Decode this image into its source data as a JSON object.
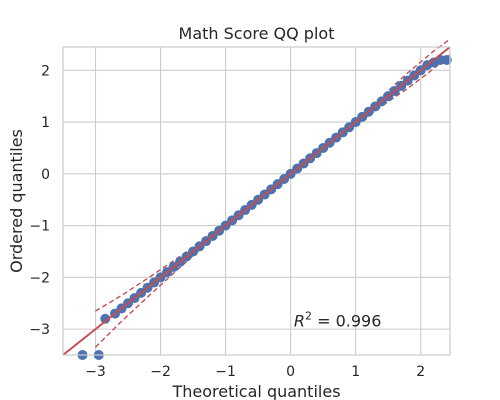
{
  "chart_data": {
    "type": "scatter",
    "title": "Math Score QQ plot",
    "xlabel": "Theoretical quantiles",
    "ylabel": "Ordered quantiles",
    "xlim": [
      -3.5,
      2.45
    ],
    "ylim": [
      -3.5,
      2.45
    ],
    "xticks": [
      -3,
      -2,
      -1,
      0,
      1,
      2
    ],
    "yticks": [
      -3,
      -2,
      -1,
      0,
      1,
      2
    ],
    "xtick_labels": [
      "−3",
      "−2",
      "−1",
      "0",
      "1",
      "2"
    ],
    "ytick_labels": [
      "−3",
      "−2",
      "−1",
      "0",
      "1",
      "2"
    ],
    "grid": true,
    "annotation": {
      "prefix": "R",
      "exponent": "2",
      "suffix": " = 0.996",
      "x": 0.05,
      "y": -2.85
    },
    "fit_line": {
      "slope": 1.0,
      "intercept": 0.0
    },
    "confidence_band": {
      "x": [
        -3.0,
        -2.6,
        -2.2,
        -1.8,
        -1.4,
        -1.0,
        -0.6,
        -0.2,
        0.2,
        0.6,
        1.0,
        1.4,
        1.8,
        2.0,
        2.2,
        2.45
      ],
      "upper": [
        -2.65,
        -2.35,
        -2.02,
        -1.68,
        -1.33,
        -0.97,
        -0.58,
        -0.19,
        0.22,
        0.63,
        1.05,
        1.49,
        1.95,
        2.16,
        2.37,
        2.6
      ],
      "lower": [
        -3.35,
        -2.85,
        -2.38,
        -1.92,
        -1.47,
        -1.03,
        -0.62,
        -0.21,
        0.18,
        0.57,
        0.95,
        1.31,
        1.65,
        1.84,
        2.03,
        2.3
      ]
    },
    "points": [
      {
        "x": -3.2,
        "y": -3.5
      },
      {
        "x": -2.95,
        "y": -3.5
      },
      {
        "x": -2.85,
        "y": -2.8
      },
      {
        "x": -2.7,
        "y": -2.7
      },
      {
        "x": -2.6,
        "y": -2.6
      },
      {
        "x": -2.5,
        "y": -2.5
      },
      {
        "x": -2.4,
        "y": -2.4
      },
      {
        "x": -2.3,
        "y": -2.3
      },
      {
        "x": -2.2,
        "y": -2.2
      },
      {
        "x": -2.1,
        "y": -2.1
      },
      {
        "x": -2.0,
        "y": -2.0
      },
      {
        "x": -1.9,
        "y": -1.9
      },
      {
        "x": -1.8,
        "y": -1.8
      },
      {
        "x": -1.7,
        "y": -1.7
      },
      {
        "x": -1.6,
        "y": -1.6
      },
      {
        "x": -1.5,
        "y": -1.5
      },
      {
        "x": -1.4,
        "y": -1.4
      },
      {
        "x": -1.3,
        "y": -1.3
      },
      {
        "x": -1.2,
        "y": -1.2
      },
      {
        "x": -1.1,
        "y": -1.1
      },
      {
        "x": -1.0,
        "y": -1.0
      },
      {
        "x": -0.9,
        "y": -0.9
      },
      {
        "x": -0.8,
        "y": -0.8
      },
      {
        "x": -0.7,
        "y": -0.7
      },
      {
        "x": -0.6,
        "y": -0.6
      },
      {
        "x": -0.5,
        "y": -0.5
      },
      {
        "x": -0.4,
        "y": -0.4
      },
      {
        "x": -0.3,
        "y": -0.3
      },
      {
        "x": -0.2,
        "y": -0.2
      },
      {
        "x": -0.1,
        "y": -0.1
      },
      {
        "x": 0.0,
        "y": 0.0
      },
      {
        "x": 0.1,
        "y": 0.1
      },
      {
        "x": 0.2,
        "y": 0.2
      },
      {
        "x": 0.3,
        "y": 0.3
      },
      {
        "x": 0.4,
        "y": 0.4
      },
      {
        "x": 0.5,
        "y": 0.5
      },
      {
        "x": 0.6,
        "y": 0.6
      },
      {
        "x": 0.7,
        "y": 0.7
      },
      {
        "x": 0.8,
        "y": 0.8
      },
      {
        "x": 0.9,
        "y": 0.9
      },
      {
        "x": 1.0,
        "y": 1.0
      },
      {
        "x": 1.1,
        "y": 1.1
      },
      {
        "x": 1.2,
        "y": 1.2
      },
      {
        "x": 1.3,
        "y": 1.3
      },
      {
        "x": 1.4,
        "y": 1.4
      },
      {
        "x": 1.5,
        "y": 1.5
      },
      {
        "x": 1.6,
        "y": 1.6
      },
      {
        "x": 1.7,
        "y": 1.7
      },
      {
        "x": 1.8,
        "y": 1.8
      },
      {
        "x": 1.9,
        "y": 1.9
      },
      {
        "x": 2.0,
        "y": 2.0
      },
      {
        "x": 2.1,
        "y": 2.1
      },
      {
        "x": 2.2,
        "y": 2.15
      },
      {
        "x": 2.3,
        "y": 2.2
      },
      {
        "x": 2.4,
        "y": 2.2
      }
    ],
    "colors": {
      "points": "#4c72b0",
      "fit_line": "#c44e52",
      "band": "#c44e52",
      "grid": "#cccccc",
      "frame": "#cccccc",
      "text": "#262626"
    }
  }
}
